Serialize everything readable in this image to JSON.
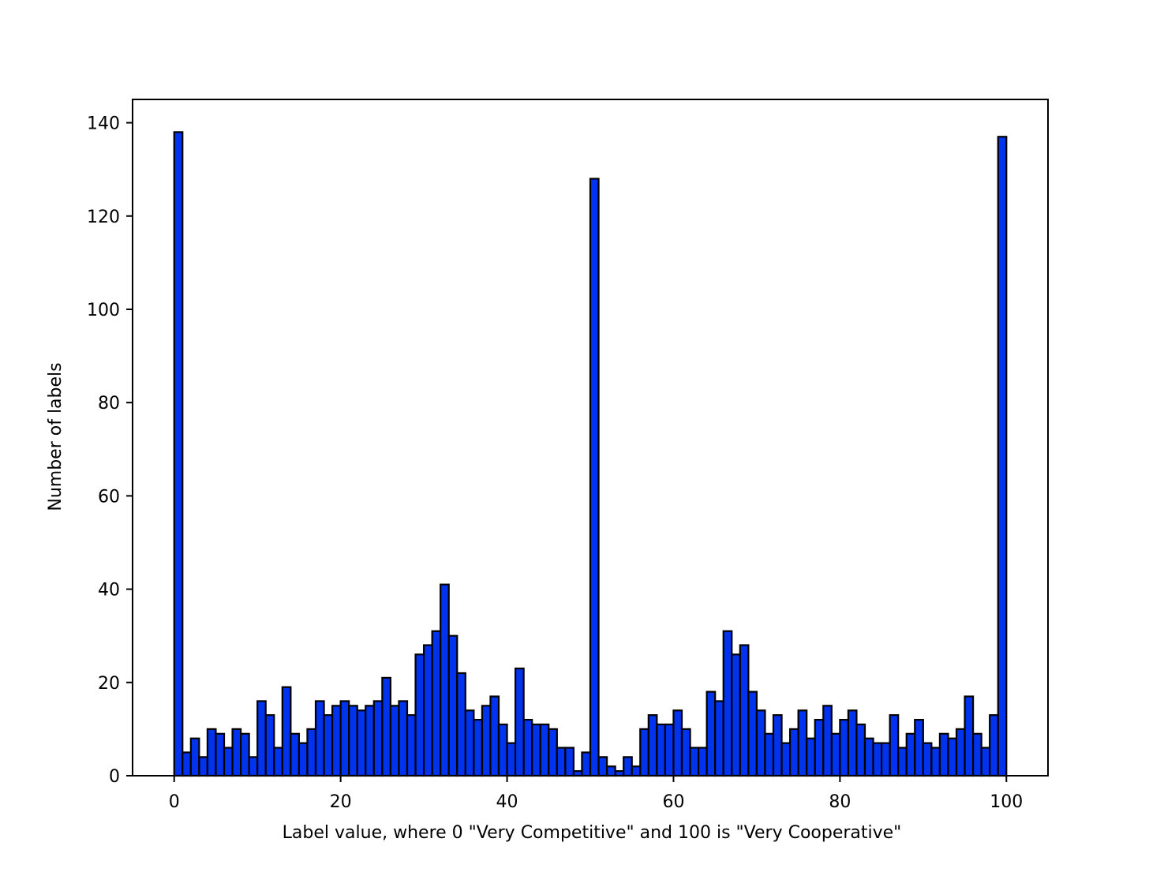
{
  "chart_data": {
    "type": "bar",
    "title": "",
    "xlabel": "Label value, where 0 \"Very Competitive\" and 100 is \"Very Cooperative\"",
    "ylabel": "Number of labels",
    "xlim": [
      -5,
      105
    ],
    "ylim": [
      0,
      145
    ],
    "xticks": [
      0,
      20,
      40,
      60,
      80,
      100
    ],
    "yticks": [
      0,
      20,
      40,
      60,
      80,
      100,
      120,
      140
    ],
    "bar_color": "#0033ee",
    "edge_color": "#000000",
    "grid": false,
    "legend": "none",
    "bins": {
      "start": 0,
      "end": 100,
      "width": 1,
      "counts": [
        138,
        5,
        8,
        4,
        10,
        9,
        6,
        10,
        9,
        4,
        16,
        13,
        6,
        19,
        9,
        7,
        10,
        16,
        13,
        15,
        16,
        15,
        14,
        15,
        16,
        21,
        15,
        16,
        13,
        26,
        28,
        31,
        41,
        30,
        22,
        14,
        12,
        15,
        17,
        11,
        7,
        23,
        12,
        11,
        11,
        10,
        6,
        6,
        1,
        5,
        128,
        4,
        2,
        1,
        4,
        2,
        10,
        13,
        11,
        11,
        14,
        10,
        6,
        6,
        18,
        16,
        31,
        26,
        28,
        18,
        14,
        9,
        13,
        7,
        10,
        14,
        8,
        12,
        15,
        9,
        12,
        14,
        11,
        8,
        7,
        7,
        13,
        6,
        9,
        12,
        7,
        6,
        9,
        8,
        10,
        17,
        9,
        6,
        13,
        137
      ]
    }
  }
}
